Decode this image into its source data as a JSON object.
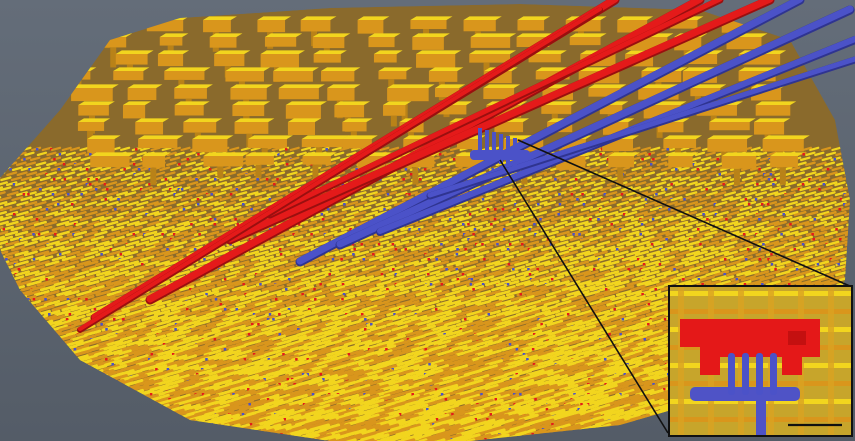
{
  "image": {
    "subject": "3d-reconstruction-of-interconnect-layers",
    "colors": {
      "background": "#5d6672",
      "metal_yellow": "#f2d51e",
      "metal_orange": "#d9961c",
      "via_red": "#e41a1a",
      "via_blue": "#4b52c8",
      "callout_line": "#111111"
    },
    "inset": {
      "scale_bar_shown": true
    }
  }
}
